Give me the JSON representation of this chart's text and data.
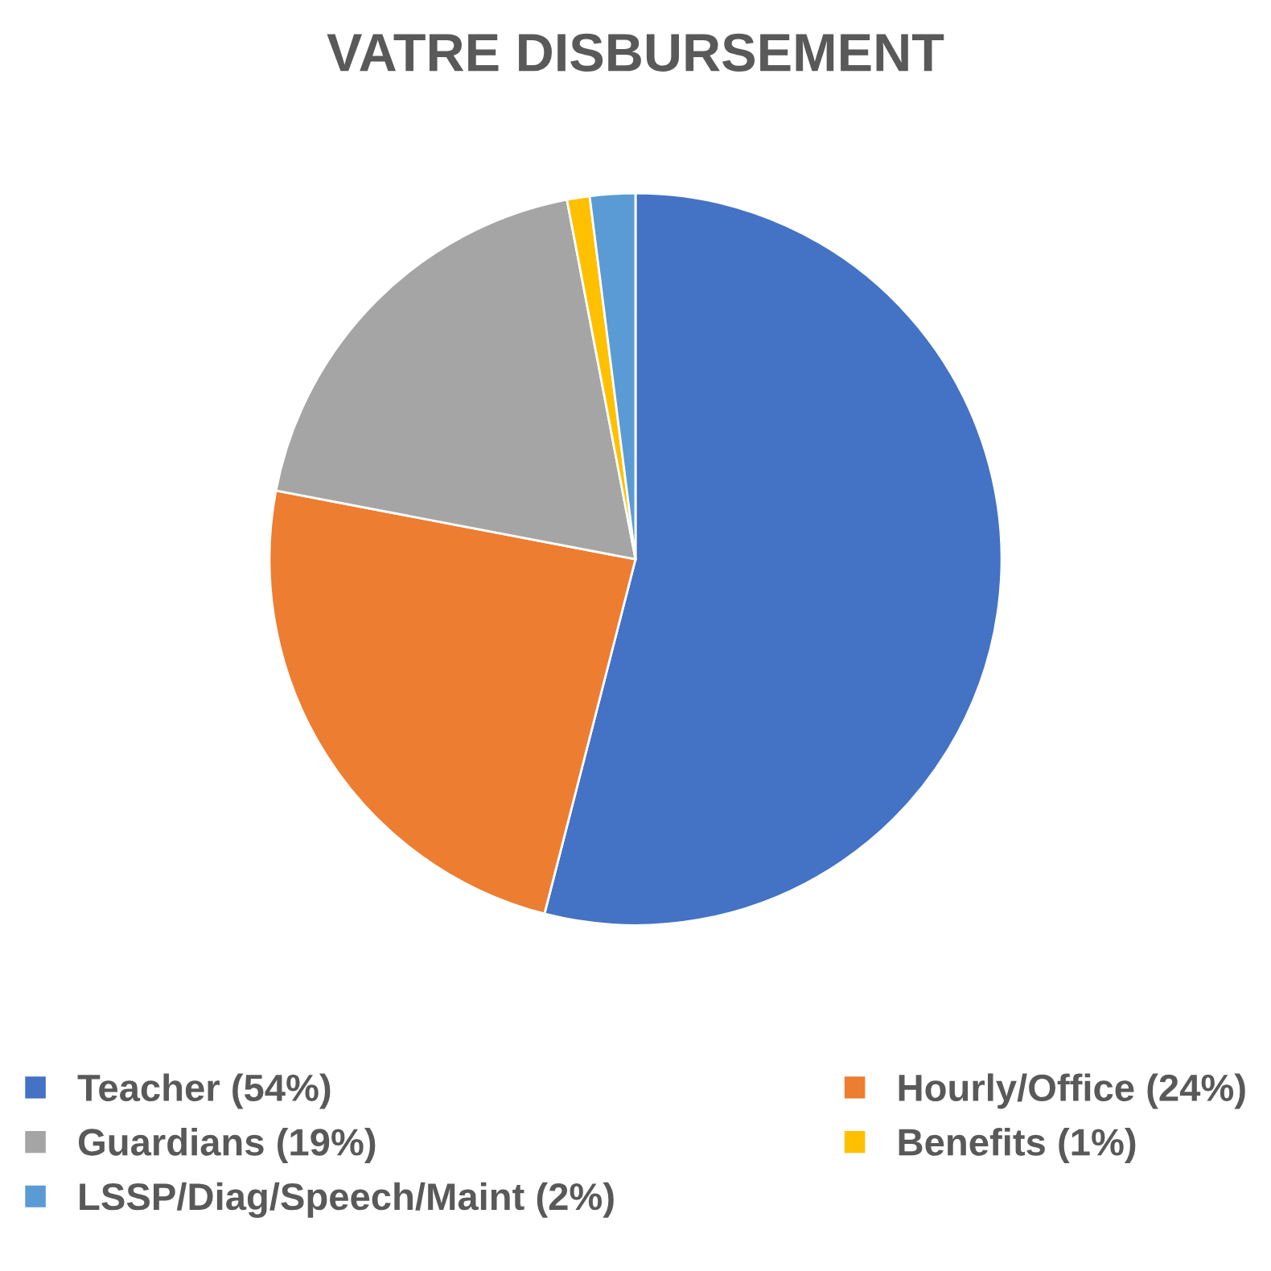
{
  "chart_data": {
    "type": "pie",
    "title": "VATRE DISBURSEMENT",
    "categories": [
      "Teacher (54%)",
      "Hourly/Office (24%)",
      "Guardians (19%)",
      "Benefits (1%)",
      "LSSP/Diag/Speech/Maint (2%)"
    ],
    "values": [
      54,
      24,
      19,
      1,
      2
    ],
    "colors": [
      "#4472c4",
      "#ed7d31",
      "#a5a5a5",
      "#ffc000",
      "#5b9bd5"
    ],
    "legend": "bottom"
  }
}
